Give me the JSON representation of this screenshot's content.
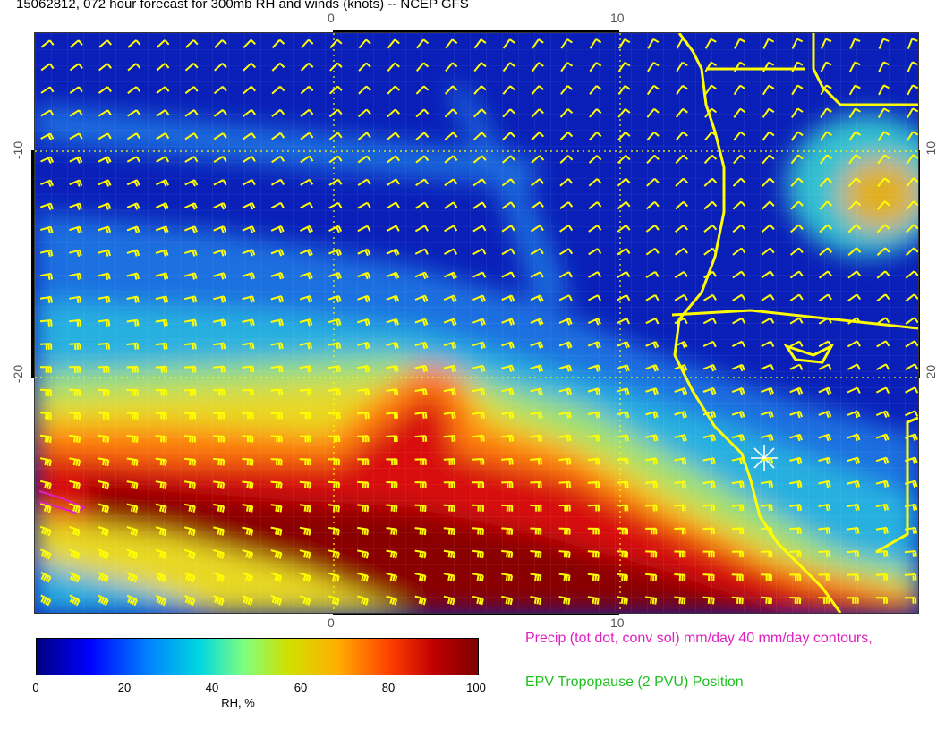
{
  "title": "15062812, 072 hour forecast for 300mb RH and winds (knots) -- NCEP GFS",
  "map": {
    "top_ticks": [
      "0",
      "10"
    ],
    "bottom_ticks": [
      "0",
      "10"
    ],
    "left_ticks": [
      "-10",
      "-20"
    ],
    "right_ticks": [
      "-10",
      "-20"
    ],
    "overlay_color": "#ffff00",
    "precip_color": "#e020c0"
  },
  "colorbar": {
    "ticks": [
      "0",
      "20",
      "40",
      "60",
      "80",
      "100"
    ],
    "label": "RH, %"
  },
  "legend": {
    "precip": "Precip (tot dot, conv sol) mm/day 40 mm/day contours,",
    "tropopause": "EPV Tropopause (2 PVU) Position"
  }
}
